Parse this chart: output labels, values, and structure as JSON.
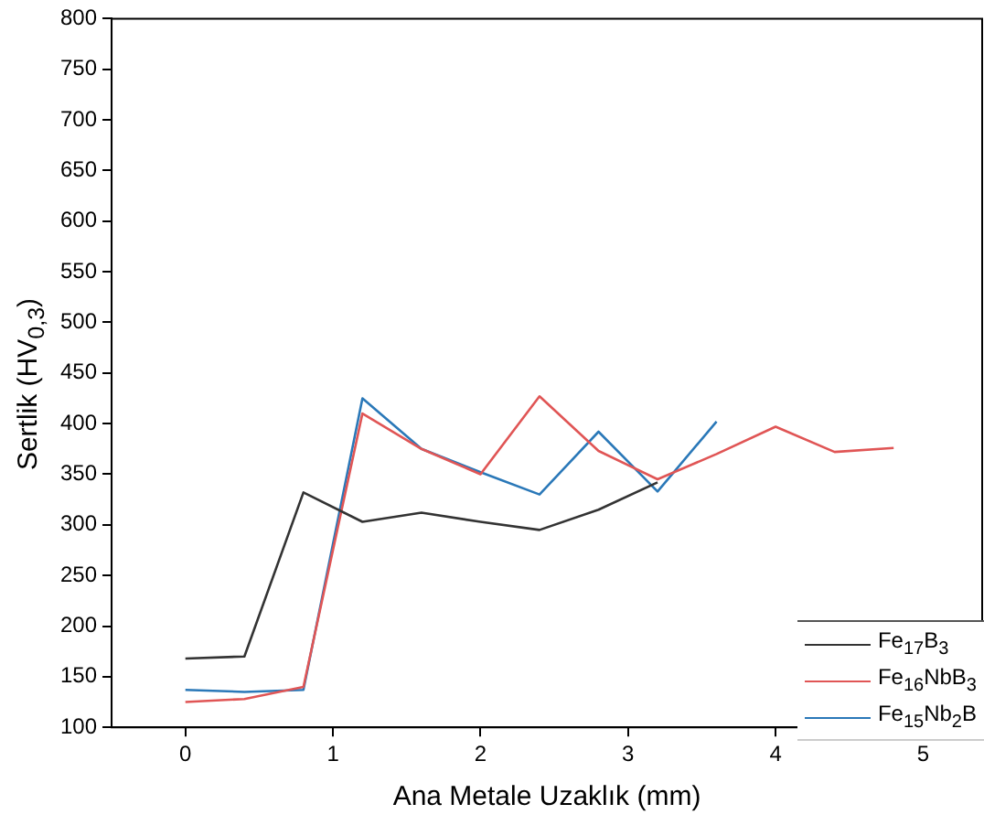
{
  "chart_data": {
    "type": "line",
    "xlabel": "Ana Metale Uzaklık (mm)",
    "ylabel": "Sertlik (HV$_{0,3}$)",
    "x": [
      0,
      0.4,
      0.8,
      1.2,
      1.6,
      2.0,
      2.4,
      2.8,
      3.2,
      3.6,
      4.0,
      4.4,
      4.8
    ],
    "series": [
      {
        "name": "Fe$_{17}$B$_{3}$",
        "color": "#333333",
        "x": [
          0,
          0.4,
          0.8,
          1.2,
          1.6,
          2.0,
          2.4,
          2.8,
          3.2
        ],
        "values": [
          168,
          170,
          332,
          303,
          312,
          303,
          295,
          315,
          342
        ]
      },
      {
        "name": "Fe$_{16}$NbB$_{3}$",
        "color": "#e05555",
        "values": [
          125,
          128,
          140,
          410,
          375,
          350,
          427,
          373,
          345,
          370,
          397,
          372,
          376
        ]
      },
      {
        "name": "Fe$_{15}$Nb$_{2}$B",
        "color": "#2a78b8",
        "x": [
          0,
          0.4,
          0.8,
          1.2,
          1.6,
          2.0,
          2.4,
          2.8,
          3.2,
          3.6
        ],
        "values": [
          137,
          135,
          137,
          425,
          375,
          352,
          330,
          392,
          333,
          402
        ]
      }
    ],
    "xlim": [
      -0.5,
      5.4
    ],
    "xticks": [
      0,
      1,
      2,
      3,
      4,
      5
    ],
    "ylim": [
      100,
      800
    ],
    "yticks": [
      100,
      150,
      200,
      250,
      300,
      350,
      400,
      450,
      500,
      550,
      600,
      650,
      700,
      750,
      800
    ],
    "grid": false,
    "legend": "bottom right",
    "marker": "none",
    "line_style": "solid"
  }
}
